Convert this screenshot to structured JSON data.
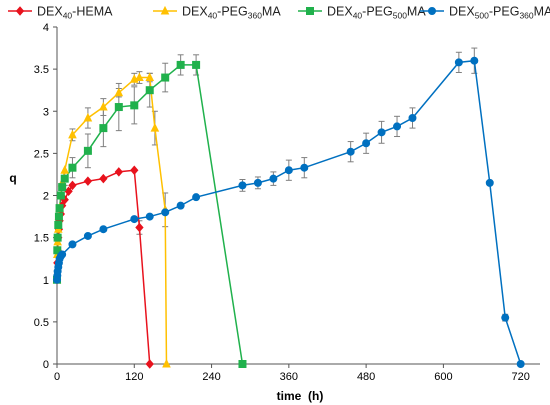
{
  "chart_data": {
    "type": "line",
    "xlabel": "time  (h)",
    "ylabel": "q",
    "xlim": [
      0,
      750
    ],
    "ylim": [
      0,
      4
    ],
    "xticks": [
      0,
      120,
      240,
      360,
      480,
      600,
      720
    ],
    "yticks": [
      0,
      0.5,
      1,
      1.5,
      2,
      2.5,
      3,
      3.5,
      4
    ],
    "grid": false,
    "legend_position": "top",
    "series": [
      {
        "name_base": "DEX",
        "name_sub1": "40",
        "name_mid": "-HEMA",
        "name_sub2": "",
        "name_tail": "",
        "color": "#e8121d",
        "marker": "diamond",
        "points": [
          [
            0,
            1.0
          ],
          [
            0.5,
            1.2
          ],
          [
            1,
            1.35
          ],
          [
            2,
            1.5
          ],
          [
            3,
            1.6
          ],
          [
            4,
            1.7
          ],
          [
            6,
            1.78
          ],
          [
            8,
            1.88
          ],
          [
            12,
            1.95
          ],
          [
            18,
            2.05
          ],
          [
            24,
            2.12
          ],
          [
            48,
            2.17
          ],
          [
            72,
            2.2
          ],
          [
            96,
            2.28
          ],
          [
            120,
            2.3
          ],
          [
            128,
            1.62
          ],
          [
            144,
            0.0
          ]
        ],
        "errors": [
          0,
          0,
          0,
          0,
          0,
          0,
          0,
          0,
          0,
          0,
          0,
          0,
          0,
          0,
          0,
          0.08,
          0
        ]
      },
      {
        "name_base": "DEX",
        "name_sub1": "40",
        "name_mid": "-PEG",
        "name_sub2": "360",
        "name_tail": "MA",
        "color": "#ffc000",
        "marker": "triangle",
        "points": [
          [
            0,
            1.0
          ],
          [
            0.5,
            1.3
          ],
          [
            1,
            1.45
          ],
          [
            2,
            1.6
          ],
          [
            3,
            1.75
          ],
          [
            4,
            1.85
          ],
          [
            6,
            2.0
          ],
          [
            8,
            2.15
          ],
          [
            12,
            2.3
          ],
          [
            24,
            2.72
          ],
          [
            48,
            2.92
          ],
          [
            72,
            3.05
          ],
          [
            96,
            3.22
          ],
          [
            120,
            3.38
          ],
          [
            128,
            3.4
          ],
          [
            144,
            3.4
          ],
          [
            152,
            2.8
          ],
          [
            168,
            1.83
          ],
          [
            170,
            0.0
          ]
        ],
        "errors": [
          0,
          0,
          0,
          0,
          0,
          0,
          0,
          0,
          0,
          0.07,
          0.12,
          0.1,
          0.05,
          0.07,
          0.07,
          0.05,
          0.2,
          0.2,
          0
        ]
      },
      {
        "name_base": "DEX",
        "name_sub1": "40",
        "name_mid": "-PEG",
        "name_sub2": "500",
        "name_tail": "MA",
        "color": "#20b14c",
        "marker": "square",
        "points": [
          [
            0,
            1.0
          ],
          [
            0.5,
            1.35
          ],
          [
            1,
            1.5
          ],
          [
            2,
            1.65
          ],
          [
            3,
            1.75
          ],
          [
            4,
            1.85
          ],
          [
            6,
            2.0
          ],
          [
            8,
            2.1
          ],
          [
            12,
            2.2
          ],
          [
            24,
            2.33
          ],
          [
            48,
            2.53
          ],
          [
            72,
            2.8
          ],
          [
            96,
            3.05
          ],
          [
            120,
            3.07
          ],
          [
            144,
            3.25
          ],
          [
            168,
            3.4
          ],
          [
            192,
            3.55
          ],
          [
            216,
            3.55
          ],
          [
            288,
            0.0
          ]
        ],
        "errors": [
          0,
          0,
          0,
          0,
          0,
          0,
          0,
          0,
          0.08,
          0.12,
          0.2,
          0.22,
          0.28,
          0.22,
          0.2,
          0.17,
          0.12,
          0.12,
          0
        ]
      },
      {
        "name_base": "DEX",
        "name_sub1": "500",
        "name_mid": "-PEG",
        "name_sub2": "360",
        "name_tail": "MA",
        "color": "#0070c0",
        "marker": "circle",
        "points": [
          [
            0,
            1.0
          ],
          [
            0.5,
            1.05
          ],
          [
            1,
            1.1
          ],
          [
            2,
            1.15
          ],
          [
            3,
            1.2
          ],
          [
            4,
            1.25
          ],
          [
            6,
            1.28
          ],
          [
            8,
            1.3
          ],
          [
            24,
            1.42
          ],
          [
            48,
            1.52
          ],
          [
            72,
            1.6
          ],
          [
            120,
            1.72
          ],
          [
            144,
            1.75
          ],
          [
            168,
            1.8
          ],
          [
            192,
            1.88
          ],
          [
            216,
            1.98
          ],
          [
            288,
            2.12
          ],
          [
            312,
            2.15
          ],
          [
            336,
            2.2
          ],
          [
            360,
            2.3
          ],
          [
            384,
            2.33
          ],
          [
            456,
            2.52
          ],
          [
            480,
            2.62
          ],
          [
            504,
            2.75
          ],
          [
            528,
            2.82
          ],
          [
            552,
            2.92
          ],
          [
            624,
            3.58
          ],
          [
            648,
            3.6
          ],
          [
            672,
            2.15
          ],
          [
            696,
            0.55
          ],
          [
            720,
            0.0
          ]
        ],
        "errors": [
          0,
          0,
          0,
          0,
          0,
          0,
          0,
          0,
          0,
          0,
          0,
          0,
          0,
          0,
          0,
          0,
          0.07,
          0.07,
          0.08,
          0.12,
          0.12,
          0.12,
          0.12,
          0.13,
          0.12,
          0.12,
          0.12,
          0.15,
          0,
          0.04,
          0
        ]
      }
    ]
  }
}
